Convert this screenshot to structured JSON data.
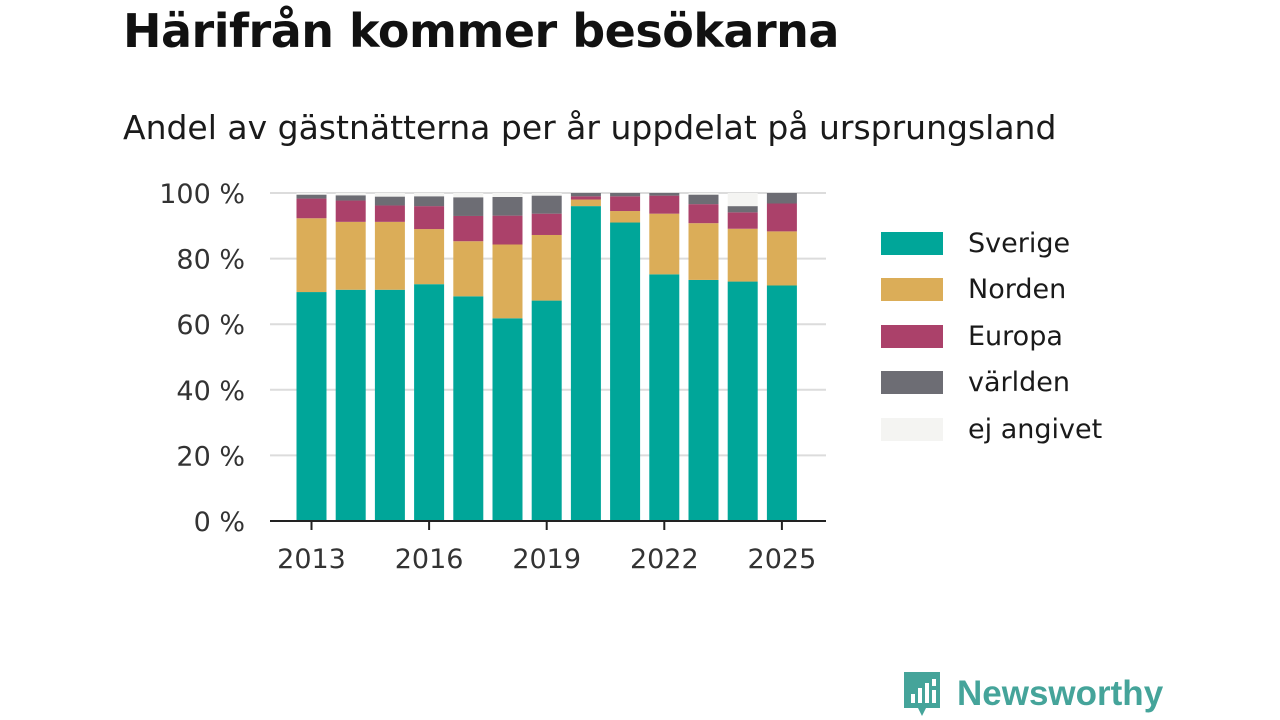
{
  "title": "Härifrån kommer besökarna",
  "subtitle": "Andel av gästnätterna per år uppdelat på ursprungsland",
  "brand": {
    "name": "Newsworthy",
    "icon": "newsworthy-logo-icon",
    "color": "#45a49a"
  },
  "chart_data": {
    "type": "bar",
    "stacked": true,
    "x": [
      2013,
      2014,
      2015,
      2016,
      2017,
      2018,
      2019,
      2020,
      2021,
      2022,
      2023,
      2024,
      2025
    ],
    "xticks": [
      "2013",
      "2016",
      "2019",
      "2022",
      "2025"
    ],
    "yticks": [
      "0 %",
      "20 %",
      "40 %",
      "60 %",
      "80 %",
      "100 %"
    ],
    "ylim": [
      0,
      100
    ],
    "grid": true,
    "legend_position": "right",
    "series": [
      {
        "name": "Sverige",
        "color": "#00a699",
        "values": [
          69.8,
          70.5,
          70.5,
          72.2,
          68.5,
          61.8,
          67.2,
          96.0,
          91.0,
          75.2,
          73.5,
          73.0,
          71.8
        ]
      },
      {
        "name": "Norden",
        "color": "#dbad58",
        "values": [
          22.5,
          20.7,
          20.7,
          16.8,
          16.8,
          22.5,
          20.0,
          2.0,
          3.5,
          18.5,
          17.3,
          16.1,
          16.5
        ]
      },
      {
        "name": "Europa",
        "color": "#ab416a",
        "values": [
          6.0,
          6.5,
          5.0,
          7.0,
          7.7,
          8.8,
          6.5,
          1.0,
          4.5,
          5.5,
          5.8,
          5.0,
          8.5
        ]
      },
      {
        "name": "världen",
        "color": "#6d6d74",
        "values": [
          1.2,
          1.6,
          2.7,
          3.0,
          5.7,
          5.7,
          5.5,
          1.0,
          1.0,
          0.8,
          2.9,
          1.9,
          3.2
        ]
      },
      {
        "name": "ej angivet",
        "color": "#f4f4f2",
        "values": [
          0.5,
          0.7,
          1.1,
          1.0,
          1.3,
          1.2,
          0.8,
          0.0,
          0.0,
          0.0,
          0.5,
          4.0,
          0.0
        ]
      }
    ]
  }
}
